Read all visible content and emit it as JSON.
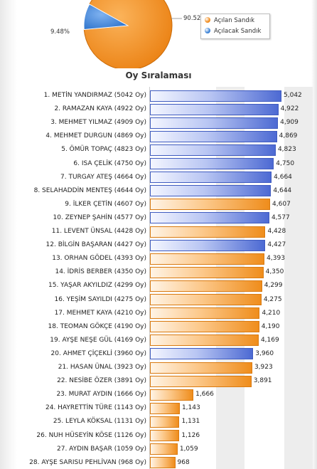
{
  "pie": {
    "labels": [
      "90.52",
      "9.48%"
    ],
    "legend": [
      {
        "label": "Açılan Sandık",
        "color": "#f08c1e"
      },
      {
        "label": "Açılacak Sandık",
        "color": "#3b82d6"
      }
    ],
    "slices": [
      {
        "name": "Açılan Sandık",
        "value": 90.52,
        "color": "#f08c1e"
      },
      {
        "name": "Açılacak Sandık",
        "value": 9.48,
        "color": "#3b82d6"
      }
    ]
  },
  "chart_data": {
    "type": "bar",
    "orientation": "horizontal",
    "title": "Oy Sıralaması",
    "xlim": [
      0,
      5500
    ],
    "grid": true,
    "colors": {
      "blue": "#4f6fd6",
      "orange": "#f19a2a"
    },
    "items": [
      {
        "label": "1. METİN YANDIRMAZ (5042 Oy)",
        "value": 5042,
        "display": "5,042",
        "color": "blue"
      },
      {
        "label": "2. RAMAZAN KAYA (4922 Oy)",
        "value": 4922,
        "display": "4,922",
        "color": "blue"
      },
      {
        "label": "3. MEHMET YILMAZ (4909 Oy)",
        "value": 4909,
        "display": "4,909",
        "color": "blue"
      },
      {
        "label": "4. MEHMET DURGUN (4869 Oy)",
        "value": 4869,
        "display": "4,869",
        "color": "blue"
      },
      {
        "label": "5. ÖMÜR TOPAÇ (4823 Oy)",
        "value": 4823,
        "display": "4,823",
        "color": "blue"
      },
      {
        "label": "6. ISA ÇELİK (4750 Oy)",
        "value": 4750,
        "display": "4,750",
        "color": "blue"
      },
      {
        "label": "7. TURGAY ATEŞ (4664 Oy)",
        "value": 4664,
        "display": "4,664",
        "color": "blue"
      },
      {
        "label": "8. SELAHADDİN MENTEŞ (4644 Oy)",
        "value": 4644,
        "display": "4,644",
        "color": "blue"
      },
      {
        "label": "9. İLKER ÇETİN (4607 Oy)",
        "value": 4607,
        "display": "4,607",
        "color": "orange"
      },
      {
        "label": "10. ZEYNEP ŞAHİN (4577 Oy)",
        "value": 4577,
        "display": "4,577",
        "color": "blue"
      },
      {
        "label": "11. LEVENT ÜNSAL (4428 Oy)",
        "value": 4428,
        "display": "4,428",
        "color": "orange"
      },
      {
        "label": "12. BİLGİN BAŞARAN (4427 Oy)",
        "value": 4427,
        "display": "4,427",
        "color": "blue"
      },
      {
        "label": "13. ORHAN GÖDEL (4393 Oy)",
        "value": 4393,
        "display": "4,393",
        "color": "orange"
      },
      {
        "label": "14. İDRİS BERBER (4350 Oy)",
        "value": 4350,
        "display": "4,350",
        "color": "orange"
      },
      {
        "label": "15. YAŞAR AKYILDIZ (4299 Oy)",
        "value": 4299,
        "display": "4,299",
        "color": "orange"
      },
      {
        "label": "16. YEŞİM SAYILDI (4275 Oy)",
        "value": 4275,
        "display": "4,275",
        "color": "orange"
      },
      {
        "label": "17. MEHMET KAYA (4210 Oy)",
        "value": 4210,
        "display": "4,210",
        "color": "orange"
      },
      {
        "label": "18. TEOMAN GÖKÇE (4190 Oy)",
        "value": 4190,
        "display": "4,190",
        "color": "orange"
      },
      {
        "label": "19. AYŞE NEŞE GÜL (4169 Oy)",
        "value": 4169,
        "display": "4,169",
        "color": "orange"
      },
      {
        "label": "20. AHMET ÇİÇEKLİ (3960 Oy)",
        "value": 3960,
        "display": "3,960",
        "color": "blue"
      },
      {
        "label": "21. HASAN ÜNAL (3923 Oy)",
        "value": 3923,
        "display": "3,923",
        "color": "orange"
      },
      {
        "label": "22. NESİBE ÖZER (3891 Oy)",
        "value": 3891,
        "display": "3,891",
        "color": "orange"
      },
      {
        "label": "23. MURAT AYDIN (1666 Oy)",
        "value": 1666,
        "display": "1,666",
        "color": "orange"
      },
      {
        "label": "24. HAYRETTİN TÜRE (1143 Oy)",
        "value": 1143,
        "display": "1,143",
        "color": "orange"
      },
      {
        "label": "25. LEYLA KÖKSAL (1131 Oy)",
        "value": 1131,
        "display": "1,131",
        "color": "orange"
      },
      {
        "label": "26. NUH HÜSEYİN KÖSE (1126 Oy)",
        "value": 1126,
        "display": "1,126",
        "color": "orange"
      },
      {
        "label": "27. AYDIN BAŞAR (1059 Oy)",
        "value": 1059,
        "display": "1,059",
        "color": "orange"
      },
      {
        "label": "28. AYŞE SARISU PEHLİVAN (968 Oy)",
        "value": 968,
        "display": "968",
        "color": "orange"
      }
    ]
  }
}
